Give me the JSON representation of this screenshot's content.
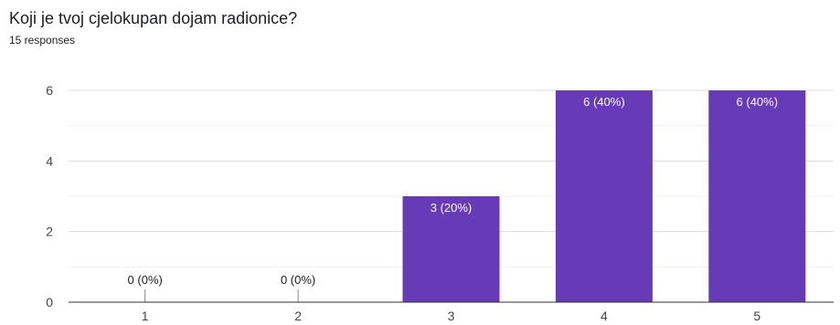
{
  "question": {
    "title": "Koji je tvoj cjelokupan dojam radionice?",
    "response_count": "15 responses"
  },
  "colors": {
    "bar": "#673ab7",
    "grid": "#e8e8e8",
    "axis": "#333333",
    "label_inside": "#ffffff",
    "label_outside": "#202124"
  },
  "chart_data": {
    "type": "bar",
    "categories": [
      "1",
      "2",
      "3",
      "4",
      "5"
    ],
    "values": [
      0,
      0,
      3,
      6,
      6
    ],
    "data_labels": [
      "0 (0%)",
      "0 (0%)",
      "3 (20%)",
      "6 (40%)",
      "6 (40%)"
    ],
    "ylim": [
      0,
      6
    ],
    "yticks": [
      0,
      2,
      4,
      6
    ],
    "title": "",
    "xlabel": "",
    "ylabel": "",
    "grid": true,
    "legend": "none"
  }
}
